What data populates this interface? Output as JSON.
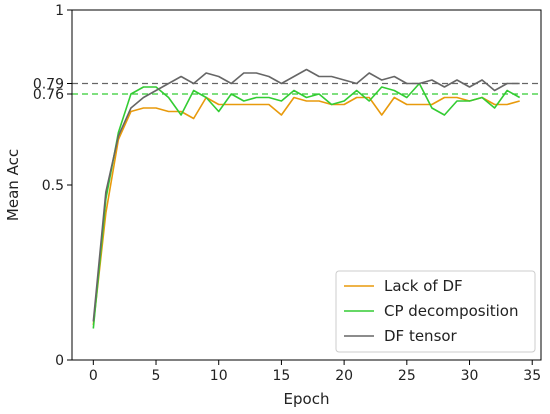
{
  "chart_data": {
    "type": "line",
    "xlabel": "Epoch",
    "ylabel": "Mean Acc",
    "xlim": [
      -1.7,
      35.7
    ],
    "ylim": [
      0,
      1
    ],
    "x_ticks": [
      0,
      5,
      10,
      15,
      20,
      25,
      30,
      35
    ],
    "x_tick_labels": [
      "0",
      "5",
      "10",
      "15",
      "20",
      "25",
      "30",
      "35"
    ],
    "y_ticks": [
      0,
      0.5,
      0.76,
      0.79,
      1
    ],
    "y_tick_labels": [
      "0",
      "0.5",
      "0.76",
      "0.79",
      "1"
    ],
    "grid": false,
    "legend_position": "lower-right",
    "x": [
      0,
      1,
      2,
      3,
      4,
      5,
      6,
      7,
      8,
      9,
      10,
      11,
      12,
      13,
      14,
      15,
      16,
      17,
      18,
      19,
      20,
      21,
      22,
      23,
      24,
      25,
      26,
      27,
      28,
      29,
      30,
      31,
      32,
      33,
      34
    ],
    "series": [
      {
        "name": "Lack of DF",
        "color": "#e89a0c",
        "values": [
          0.1,
          0.42,
          0.63,
          0.71,
          0.72,
          0.72,
          0.71,
          0.71,
          0.69,
          0.75,
          0.73,
          0.73,
          0.73,
          0.73,
          0.73,
          0.7,
          0.75,
          0.74,
          0.74,
          0.73,
          0.73,
          0.75,
          0.75,
          0.7,
          0.75,
          0.73,
          0.73,
          0.73,
          0.75,
          0.75,
          0.74,
          0.75,
          0.73,
          0.73,
          0.74
        ]
      },
      {
        "name": "CP decomposition",
        "color": "#33cc33",
        "values": [
          0.09,
          0.46,
          0.65,
          0.76,
          0.78,
          0.78,
          0.75,
          0.7,
          0.77,
          0.75,
          0.71,
          0.76,
          0.74,
          0.75,
          0.75,
          0.74,
          0.77,
          0.75,
          0.76,
          0.73,
          0.74,
          0.77,
          0.74,
          0.78,
          0.77,
          0.75,
          0.79,
          0.72,
          0.7,
          0.74,
          0.74,
          0.75,
          0.72,
          0.77,
          0.75
        ]
      },
      {
        "name": "DF tensor",
        "color": "#666666",
        "values": [
          0.11,
          0.48,
          0.64,
          0.72,
          0.75,
          0.77,
          0.79,
          0.81,
          0.79,
          0.82,
          0.81,
          0.79,
          0.82,
          0.82,
          0.81,
          0.79,
          0.81,
          0.83,
          0.81,
          0.81,
          0.8,
          0.79,
          0.82,
          0.8,
          0.81,
          0.79,
          0.79,
          0.8,
          0.78,
          0.8,
          0.78,
          0.8,
          0.77,
          0.79,
          0.79
        ]
      }
    ],
    "reference_lines": [
      {
        "y": 0.79,
        "color": "#666666",
        "style": "dashed"
      },
      {
        "y": 0.76,
        "color": "#33cc33",
        "style": "dashed"
      }
    ]
  }
}
